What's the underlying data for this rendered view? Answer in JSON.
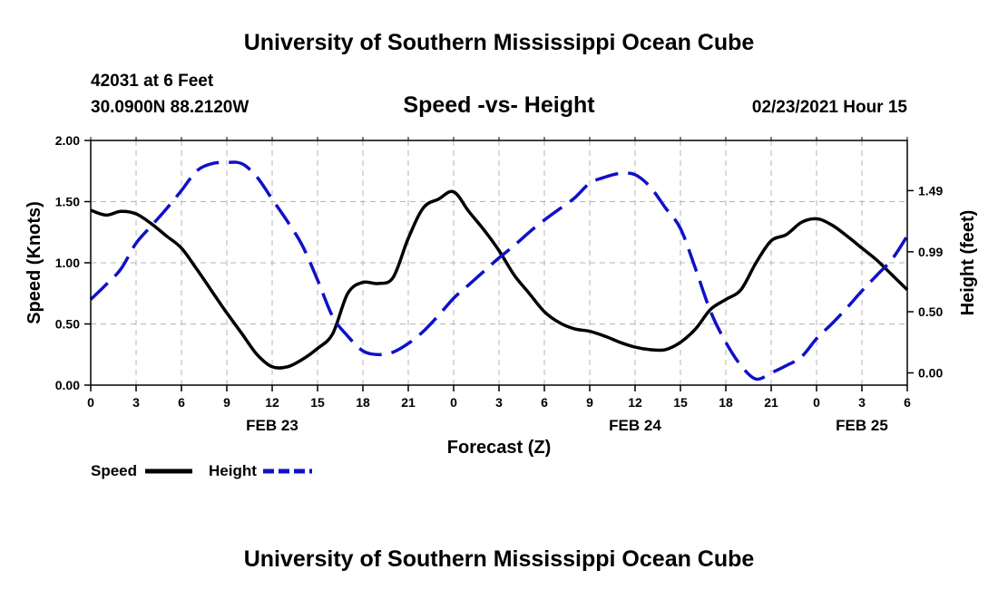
{
  "header": {
    "title": "University of Southern Mississippi Ocean Cube",
    "station": "42031 at 6 Feet",
    "coords": "30.0900N 88.2120W",
    "datetime": "02/23/2021 Hour 15"
  },
  "footer": {
    "title": "University of Southern Mississippi Ocean Cube"
  },
  "legend": {
    "speed_label": "Speed",
    "height_label": "Height"
  },
  "colors": {
    "speed": "#000000",
    "height": "#1010c8",
    "grid": "#b4b4b4"
  },
  "chart_data": {
    "type": "line",
    "title": "Speed -vs- Height",
    "xlabel": "Forecast (Z)",
    "ylabel": "Speed (Knots)",
    "y2label": "Height (feet)",
    "x_hours_range": [
      0,
      54
    ],
    "ylim": [
      0,
      2.0
    ],
    "y2lim": [
      -0.1,
      1.9
    ],
    "x_tick_labels": [
      "0",
      "3",
      "6",
      "9",
      "12",
      "15",
      "18",
      "21",
      "0",
      "3",
      "6",
      "9",
      "12",
      "15",
      "18",
      "21",
      "0",
      "3",
      "6"
    ],
    "date_labels": [
      {
        "label": "FEB 23",
        "hour": 12
      },
      {
        "label": "FEB 24",
        "hour": 36
      },
      {
        "label": "FEB 25",
        "hour": 51
      }
    ],
    "y_ticks": [
      "0.00",
      "0.50",
      "1.00",
      "1.50",
      "2.00"
    ],
    "y2_ticks": [
      "0.00",
      "0.50",
      "0.99",
      "1.49"
    ],
    "series": [
      {
        "name": "Speed",
        "axis": "left",
        "style": "solid",
        "points": [
          [
            0,
            1.43
          ],
          [
            1,
            1.39
          ],
          [
            2,
            1.42
          ],
          [
            3,
            1.4
          ],
          [
            4,
            1.32
          ],
          [
            5,
            1.22
          ],
          [
            6,
            1.12
          ],
          [
            7,
            0.95
          ],
          [
            8,
            0.77
          ],
          [
            9,
            0.59
          ],
          [
            10,
            0.42
          ],
          [
            11,
            0.25
          ],
          [
            12,
            0.15
          ],
          [
            13,
            0.15
          ],
          [
            14,
            0.21
          ],
          [
            15,
            0.3
          ],
          [
            16,
            0.42
          ],
          [
            17,
            0.75
          ],
          [
            18,
            0.84
          ],
          [
            19,
            0.83
          ],
          [
            20,
            0.88
          ],
          [
            21,
            1.2
          ],
          [
            22,
            1.45
          ],
          [
            23,
            1.52
          ],
          [
            24,
            1.58
          ],
          [
            25,
            1.42
          ],
          [
            26,
            1.27
          ],
          [
            27,
            1.1
          ],
          [
            28,
            0.9
          ],
          [
            29,
            0.75
          ],
          [
            30,
            0.6
          ],
          [
            31,
            0.51
          ],
          [
            32,
            0.46
          ],
          [
            33,
            0.44
          ],
          [
            34,
            0.4
          ],
          [
            35,
            0.35
          ],
          [
            36,
            0.31
          ],
          [
            37,
            0.29
          ],
          [
            38,
            0.29
          ],
          [
            39,
            0.35
          ],
          [
            40,
            0.46
          ],
          [
            41,
            0.62
          ],
          [
            42,
            0.7
          ],
          [
            43,
            0.78
          ],
          [
            44,
            1.0
          ],
          [
            45,
            1.18
          ],
          [
            46,
            1.23
          ],
          [
            47,
            1.33
          ],
          [
            48,
            1.36
          ],
          [
            49,
            1.31
          ],
          [
            50,
            1.22
          ],
          [
            51,
            1.12
          ],
          [
            52,
            1.02
          ],
          [
            53,
            0.9
          ],
          [
            54,
            0.78
          ]
        ]
      },
      {
        "name": "Height",
        "axis": "right",
        "style": "dashed",
        "points": [
          [
            0,
            0.6
          ],
          [
            1,
            0.72
          ],
          [
            2,
            0.85
          ],
          [
            3,
            1.06
          ],
          [
            4,
            1.2
          ],
          [
            5,
            1.34
          ],
          [
            6,
            1.49
          ],
          [
            7,
            1.65
          ],
          [
            8,
            1.71
          ],
          [
            9,
            1.72
          ],
          [
            10,
            1.71
          ],
          [
            11,
            1.6
          ],
          [
            12,
            1.42
          ],
          [
            13,
            1.24
          ],
          [
            14,
            1.04
          ],
          [
            15,
            0.76
          ],
          [
            16,
            0.46
          ],
          [
            17,
            0.3
          ],
          [
            18,
            0.18
          ],
          [
            19,
            0.15
          ],
          [
            20,
            0.17
          ],
          [
            21,
            0.24
          ],
          [
            22,
            0.34
          ],
          [
            23,
            0.47
          ],
          [
            24,
            0.61
          ],
          [
            25,
            0.72
          ],
          [
            26,
            0.83
          ],
          [
            27,
            0.94
          ],
          [
            28,
            1.04
          ],
          [
            29,
            1.15
          ],
          [
            30,
            1.25
          ],
          [
            31,
            1.34
          ],
          [
            32,
            1.43
          ],
          [
            33,
            1.55
          ],
          [
            34,
            1.6
          ],
          [
            35,
            1.63
          ],
          [
            36,
            1.62
          ],
          [
            37,
            1.52
          ],
          [
            38,
            1.35
          ],
          [
            39,
            1.18
          ],
          [
            40,
            0.85
          ],
          [
            41,
            0.5
          ],
          [
            42,
            0.25
          ],
          [
            43,
            0.06
          ],
          [
            44,
            -0.05
          ],
          [
            45,
            0.0
          ],
          [
            46,
            0.06
          ],
          [
            47,
            0.13
          ],
          [
            48,
            0.28
          ],
          [
            49,
            0.4
          ],
          [
            50,
            0.53
          ],
          [
            51,
            0.67
          ],
          [
            52,
            0.8
          ],
          [
            53,
            0.93
          ],
          [
            54,
            1.12
          ]
        ]
      }
    ]
  }
}
